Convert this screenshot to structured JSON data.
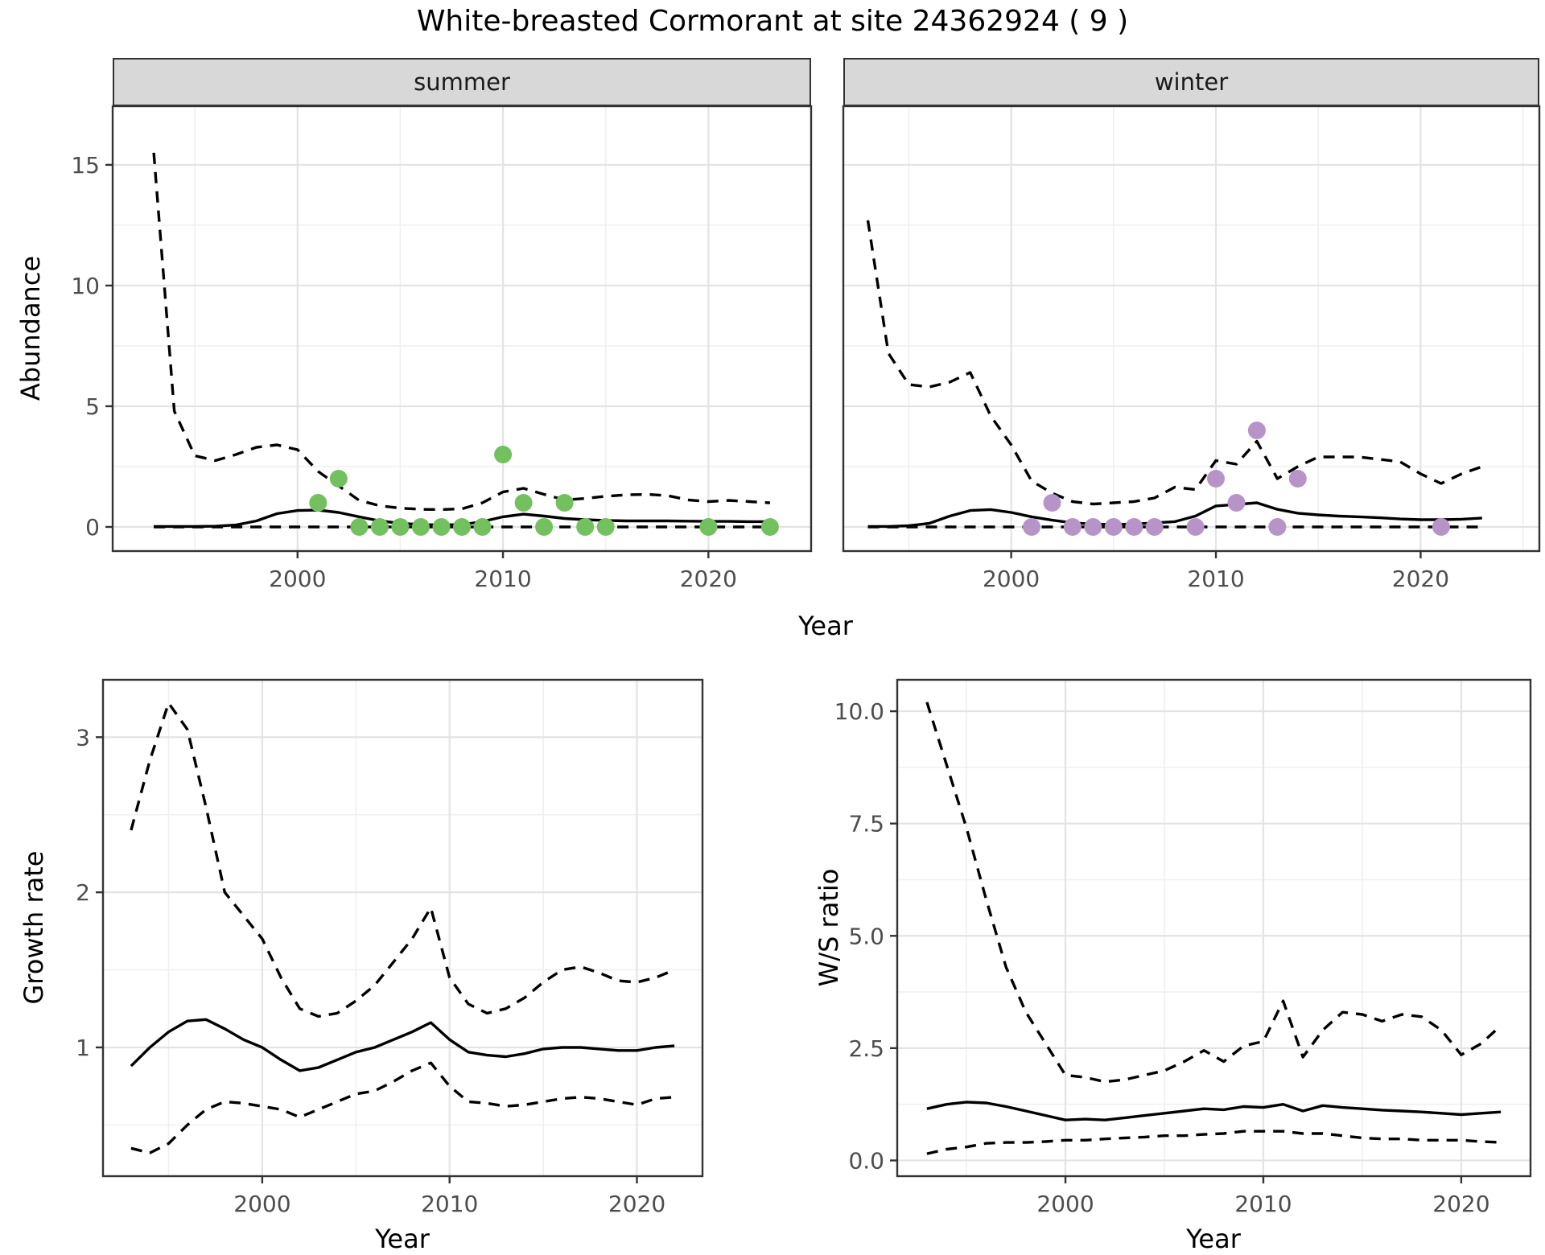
{
  "title": "White-breasted Cormorant at site 24362924 ( 9 )",
  "top_row": {
    "ylabel": "Abundance",
    "xlabel": "Year"
  },
  "colors": {
    "summer_point": "#73C05F",
    "winter_point": "#B794C8",
    "line": "#000000",
    "grid_major": "#E3E3E3",
    "grid_minor": "#F0F0F0",
    "panel_border": "#333333",
    "strip_bg": "#D8D8D8",
    "tick_text": "#4D4D4D"
  },
  "chart_data": [
    {
      "id": "abundance-summer",
      "type": "line",
      "facet_label": "summer",
      "xlabel": "Year",
      "ylabel": "Abundance",
      "xlim": [
        1991.0,
        2025.0
      ],
      "ylim": [
        -1.0,
        17.43
      ],
      "xticks": {
        "values": [
          2000,
          2010,
          2020
        ],
        "labels": [
          "2000",
          "2010",
          "2020"
        ]
      },
      "xminor": [
        1995,
        2005,
        2015
      ],
      "yticks": {
        "values": [
          0,
          5,
          10,
          15
        ],
        "labels": [
          "0",
          "5",
          "10",
          "15"
        ]
      },
      "yminor": [
        2.5,
        7.5,
        12.5
      ],
      "series": [
        {
          "name": "upper-ci",
          "style": "dashed",
          "x": [
            1993,
            1994,
            1995,
            1996,
            1997,
            1998,
            1999,
            2000,
            2001,
            2002,
            2003,
            2004,
            2005,
            2006,
            2007,
            2008,
            2009,
            2010,
            2011,
            2012,
            2013,
            2014,
            2015,
            2016,
            2017,
            2018,
            2019,
            2020,
            2021,
            2022,
            2023
          ],
          "y": [
            15.5,
            4.8,
            2.95,
            2.75,
            3.0,
            3.3,
            3.4,
            3.2,
            2.3,
            1.7,
            1.1,
            0.88,
            0.78,
            0.73,
            0.72,
            0.75,
            1.0,
            1.45,
            1.6,
            1.35,
            1.12,
            1.18,
            1.27,
            1.33,
            1.35,
            1.3,
            1.12,
            1.05,
            1.1,
            1.05,
            1.0
          ]
        },
        {
          "name": "mean",
          "style": "solid",
          "x": [
            1993,
            1994,
            1995,
            1996,
            1997,
            1998,
            1999,
            2000,
            2001,
            2002,
            2003,
            2004,
            2005,
            2006,
            2007,
            2008,
            2009,
            2010,
            2011,
            2012,
            2013,
            2014,
            2015,
            2016,
            2017,
            2018,
            2019,
            2020,
            2021,
            2022,
            2023
          ],
          "y": [
            0.02,
            0.02,
            0.02,
            0.03,
            0.08,
            0.25,
            0.55,
            0.68,
            0.7,
            0.6,
            0.42,
            0.25,
            0.15,
            0.1,
            0.08,
            0.1,
            0.22,
            0.42,
            0.53,
            0.45,
            0.35,
            0.3,
            0.27,
            0.25,
            0.25,
            0.25,
            0.24,
            0.23,
            0.23,
            0.22,
            0.22
          ]
        },
        {
          "name": "lower-ci",
          "style": "dashed",
          "x": [
            1993,
            2023
          ],
          "y": [
            0,
            0
          ]
        }
      ],
      "points": {
        "name": "summer-observation-point",
        "color_key": "summer_point",
        "x": [
          2001,
          2002,
          2003,
          2004,
          2005,
          2006,
          2007,
          2008,
          2009,
          2010,
          2011,
          2012,
          2013,
          2014,
          2015,
          2020,
          2023
        ],
        "y": [
          1,
          2,
          0,
          0,
          0,
          0,
          0,
          0,
          0,
          3,
          1,
          0,
          1,
          0,
          0,
          0,
          0
        ]
      }
    },
    {
      "id": "abundance-winter",
      "type": "line",
      "facet_label": "winter",
      "xlabel": "Year",
      "ylabel": "Abundance",
      "xlim": [
        1991.8,
        2025.8
      ],
      "ylim": [
        -1.0,
        17.43
      ],
      "xticks": {
        "values": [
          2000,
          2010,
          2020
        ],
        "labels": [
          "2000",
          "2010",
          "2020"
        ]
      },
      "xminor": [
        1995,
        2005,
        2015,
        2025
      ],
      "yticks": {
        "values": [
          0,
          5,
          10,
          15
        ],
        "labels": [
          "0",
          "5",
          "10",
          "15"
        ]
      },
      "yminor": [
        2.5,
        7.5,
        12.5
      ],
      "series": [
        {
          "name": "upper-ci",
          "style": "dashed",
          "x": [
            1993,
            1994,
            1995,
            1996,
            1997,
            1998,
            1999,
            2000,
            2001,
            2002,
            2003,
            2004,
            2005,
            2006,
            2007,
            2008,
            2009,
            2010,
            2011,
            2012,
            2013,
            2014,
            2015,
            2016,
            2017,
            2018,
            2019,
            2020,
            2021,
            2022,
            2023
          ],
          "y": [
            12.7,
            7.2,
            5.9,
            5.8,
            6.0,
            6.4,
            4.6,
            3.4,
            1.9,
            1.4,
            1.05,
            0.95,
            1.0,
            1.05,
            1.2,
            1.65,
            1.55,
            2.75,
            2.6,
            3.55,
            2.0,
            2.5,
            2.9,
            2.9,
            2.9,
            2.8,
            2.7,
            2.2,
            1.8,
            2.2,
            2.5
          ]
        },
        {
          "name": "mean",
          "style": "solid",
          "x": [
            1993,
            1994,
            1995,
            1996,
            1997,
            1998,
            1999,
            2000,
            2001,
            2002,
            2003,
            2004,
            2005,
            2006,
            2007,
            2008,
            2009,
            2010,
            2011,
            2012,
            2013,
            2014,
            2015,
            2016,
            2017,
            2018,
            2019,
            2020,
            2021,
            2022,
            2023
          ],
          "y": [
            0.02,
            0.02,
            0.05,
            0.15,
            0.45,
            0.68,
            0.72,
            0.6,
            0.42,
            0.28,
            0.17,
            0.12,
            0.1,
            0.12,
            0.17,
            0.22,
            0.45,
            0.87,
            0.93,
            1.0,
            0.73,
            0.57,
            0.5,
            0.45,
            0.42,
            0.38,
            0.33,
            0.3,
            0.3,
            0.32,
            0.37
          ]
        },
        {
          "name": "lower-ci",
          "style": "dashed",
          "x": [
            1993,
            2023
          ],
          "y": [
            0,
            0
          ]
        }
      ],
      "points": {
        "name": "winter-observation-point",
        "color_key": "winter_point",
        "x": [
          2001,
          2002,
          2003,
          2004,
          2005,
          2006,
          2007,
          2009,
          2010,
          2011,
          2012,
          2013,
          2014,
          2021
        ],
        "y": [
          0,
          1,
          0,
          0,
          0,
          0,
          0,
          0,
          2,
          1,
          4,
          0,
          2,
          0
        ]
      }
    },
    {
      "id": "growth-rate",
      "type": "line",
      "facet_label": "",
      "xlabel": "Year",
      "ylabel": "Growth rate",
      "xlim": [
        1991.5,
        2023.5
      ],
      "ylim": [
        0.17,
        3.37
      ],
      "xticks": {
        "values": [
          2000,
          2010,
          2020
        ],
        "labels": [
          "2000",
          "2010",
          "2020"
        ]
      },
      "xminor": [
        1995,
        2005,
        2015
      ],
      "yticks": {
        "values": [
          1,
          2,
          3
        ],
        "labels": [
          "1",
          "2",
          "3"
        ]
      },
      "yminor": [
        0.5,
        1.5,
        2.5
      ],
      "series": [
        {
          "name": "upper-ci",
          "style": "dashed",
          "x": [
            1993,
            1994,
            1995,
            1996,
            1997,
            1998,
            1999,
            2000,
            2001,
            2002,
            2003,
            2004,
            2005,
            2006,
            2007,
            2008,
            2009,
            2010,
            2011,
            2012,
            2013,
            2014,
            2015,
            2016,
            2017,
            2018,
            2019,
            2020,
            2021,
            2022
          ],
          "y": [
            2.4,
            2.85,
            3.22,
            3.05,
            2.55,
            2.0,
            1.85,
            1.7,
            1.45,
            1.25,
            1.2,
            1.22,
            1.3,
            1.4,
            1.55,
            1.7,
            1.9,
            1.45,
            1.28,
            1.22,
            1.25,
            1.32,
            1.42,
            1.5,
            1.52,
            1.48,
            1.43,
            1.42,
            1.45,
            1.5
          ]
        },
        {
          "name": "mean",
          "style": "solid",
          "x": [
            1993,
            1994,
            1995,
            1996,
            1997,
            1998,
            1999,
            2000,
            2001,
            2002,
            2003,
            2004,
            2005,
            2006,
            2007,
            2008,
            2009,
            2010,
            2011,
            2012,
            2013,
            2014,
            2015,
            2016,
            2017,
            2018,
            2019,
            2020,
            2021,
            2022
          ],
          "y": [
            0.88,
            1.0,
            1.1,
            1.17,
            1.18,
            1.12,
            1.05,
            1.0,
            0.92,
            0.85,
            0.87,
            0.92,
            0.97,
            1.0,
            1.05,
            1.1,
            1.16,
            1.05,
            0.97,
            0.95,
            0.94,
            0.96,
            0.99,
            1.0,
            1.0,
            0.99,
            0.98,
            0.98,
            1.0,
            1.01
          ]
        },
        {
          "name": "lower-ci",
          "style": "dashed",
          "x": [
            1993,
            1994,
            1995,
            1996,
            1997,
            1998,
            1999,
            2000,
            2001,
            2002,
            2003,
            2004,
            2005,
            2006,
            2007,
            2008,
            2009,
            2010,
            2011,
            2012,
            2013,
            2014,
            2015,
            2016,
            2017,
            2018,
            2019,
            2020,
            2021,
            2022
          ],
          "y": [
            0.35,
            0.32,
            0.38,
            0.5,
            0.6,
            0.65,
            0.64,
            0.62,
            0.6,
            0.55,
            0.6,
            0.65,
            0.7,
            0.72,
            0.78,
            0.85,
            0.9,
            0.75,
            0.65,
            0.64,
            0.62,
            0.63,
            0.65,
            0.67,
            0.68,
            0.67,
            0.65,
            0.63,
            0.67,
            0.68
          ]
        }
      ]
    },
    {
      "id": "ws-ratio",
      "type": "line",
      "facet_label": "",
      "xlabel": "Year",
      "ylabel": "W/S ratio",
      "xlim": [
        1991.5,
        2023.5
      ],
      "ylim": [
        -0.35,
        10.7
      ],
      "xticks": {
        "values": [
          2000,
          2010,
          2020
        ],
        "labels": [
          "2000",
          "2010",
          "2020"
        ]
      },
      "xminor": [
        1995,
        2005,
        2015
      ],
      "yticks": {
        "values": [
          0,
          2.5,
          5,
          7.5,
          10
        ],
        "labels": [
          "0.0",
          "2.5",
          "5.0",
          "7.5",
          "10.0"
        ]
      },
      "yminor": [
        1.25,
        3.75,
        6.25,
        8.75
      ],
      "series": [
        {
          "name": "upper-ci",
          "style": "dashed",
          "x": [
            1993,
            1994,
            1995,
            1996,
            1997,
            1998,
            1999,
            2000,
            2001,
            2002,
            2003,
            2004,
            2005,
            2006,
            2007,
            2008,
            2009,
            2010,
            2011,
            2012,
            2013,
            2014,
            2015,
            2016,
            2017,
            2018,
            2019,
            2020,
            2021,
            2022
          ],
          "y": [
            10.2,
            8.8,
            7.4,
            5.8,
            4.3,
            3.3,
            2.6,
            1.9,
            1.85,
            1.75,
            1.8,
            1.9,
            2.0,
            2.2,
            2.45,
            2.2,
            2.55,
            2.65,
            3.55,
            2.3,
            2.9,
            3.3,
            3.25,
            3.1,
            3.25,
            3.2,
            2.9,
            2.35,
            2.6,
            3.0
          ]
        },
        {
          "name": "mean",
          "style": "solid",
          "x": [
            1993,
            1994,
            1995,
            1996,
            1997,
            1998,
            1999,
            2000,
            2001,
            2002,
            2003,
            2004,
            2005,
            2006,
            2007,
            2008,
            2009,
            2010,
            2011,
            2012,
            2013,
            2014,
            2015,
            2016,
            2017,
            2018,
            2019,
            2020,
            2021,
            2022
          ],
          "y": [
            1.15,
            1.25,
            1.3,
            1.28,
            1.2,
            1.1,
            1.0,
            0.9,
            0.92,
            0.9,
            0.95,
            1.0,
            1.05,
            1.1,
            1.15,
            1.13,
            1.2,
            1.18,
            1.25,
            1.1,
            1.22,
            1.18,
            1.15,
            1.12,
            1.1,
            1.08,
            1.05,
            1.02,
            1.05,
            1.08
          ]
        },
        {
          "name": "lower-ci",
          "style": "dashed",
          "x": [
            1993,
            1994,
            1995,
            1996,
            1997,
            1998,
            1999,
            2000,
            2001,
            2002,
            2003,
            2004,
            2005,
            2006,
            2007,
            2008,
            2009,
            2010,
            2011,
            2012,
            2013,
            2014,
            2015,
            2016,
            2017,
            2018,
            2019,
            2020,
            2021,
            2022
          ],
          "y": [
            0.15,
            0.25,
            0.3,
            0.38,
            0.4,
            0.4,
            0.42,
            0.45,
            0.45,
            0.48,
            0.5,
            0.52,
            0.55,
            0.55,
            0.58,
            0.6,
            0.65,
            0.65,
            0.65,
            0.6,
            0.6,
            0.55,
            0.5,
            0.48,
            0.48,
            0.45,
            0.45,
            0.45,
            0.42,
            0.4
          ]
        }
      ]
    }
  ]
}
